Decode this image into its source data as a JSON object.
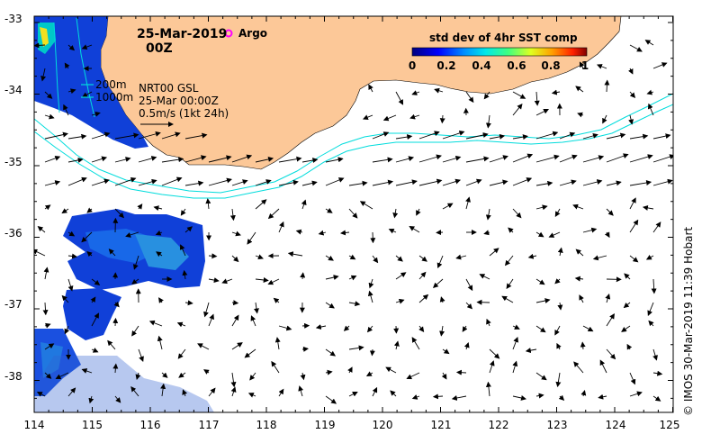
{
  "header": {
    "date": "25-Mar-2019",
    "time": "00Z",
    "argo_label": "Argo"
  },
  "annotations": {
    "iso200": "200m",
    "iso1000": "1000m",
    "product": "NRT00 GSL",
    "timestamp": "25-Mar 00:00Z",
    "scale": "0.5m/s (1kt 24h)"
  },
  "colorbar": {
    "title": "std dev of 4hr SST comp",
    "ticks": [
      "0",
      "0.2",
      "0.4",
      "0.6",
      "0.8",
      "1"
    ]
  },
  "axes": {
    "x_ticks": [
      "114",
      "115",
      "116",
      "117",
      "118",
      "119",
      "120",
      "121",
      "122",
      "123",
      "124",
      "125"
    ],
    "y_ticks": [
      "-33",
      "-34",
      "-35",
      "-36",
      "-37",
      "-38"
    ]
  },
  "credit": "© IMOS 30-Mar-2019 11:39 Hobart",
  "colors": {
    "land": "#fcc898",
    "isobath": "#00dcdc",
    "argo": "#ff00ff"
  }
}
